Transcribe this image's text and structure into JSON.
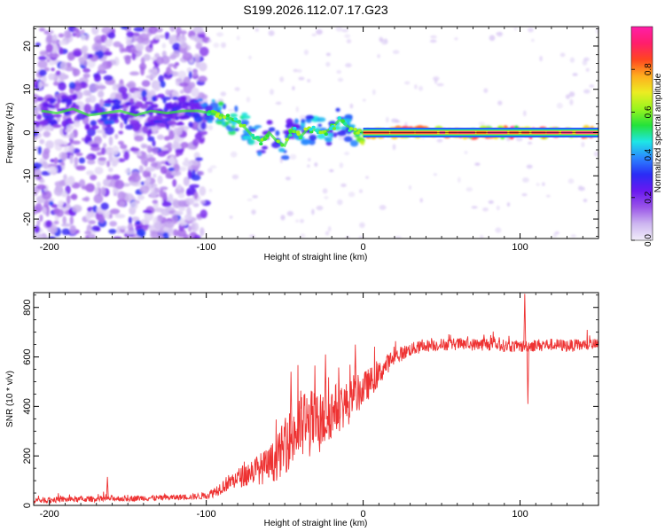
{
  "title": "S199.2026.112.07.17.G23",
  "chart_data": [
    {
      "type": "heatmap",
      "name": "spectrogram",
      "xlabel": "Height of straight line (km)",
      "ylabel": "Frequency (Hz)",
      "xlim": [
        -210,
        150
      ],
      "ylim": [
        -24.5,
        24.5
      ],
      "x_ticks": [
        -200,
        -100,
        0,
        100
      ],
      "x_tick_labels": [
        "-200",
        "-100",
        "0",
        "100"
      ],
      "y_ticks": [
        -20,
        -10,
        0,
        10,
        20
      ],
      "y_tick_labels": [
        "-20",
        "-10",
        "0",
        "10",
        "20"
      ],
      "colorbar": {
        "label": "Normalized spectral amplitude",
        "range": [
          0.0,
          1.0
        ],
        "ticks": [
          0.0,
          0.2,
          0.4,
          0.6,
          0.8
        ],
        "tick_labels": [
          "0.0",
          "0.2",
          "0.4",
          "0.6",
          "0.8"
        ],
        "colors": [
          "#f2eefa",
          "#cdb6f0",
          "#9a55e8",
          "#6a18f0",
          "#2a2cf5",
          "#2b86ff",
          "#1ee6e6",
          "#24e23a",
          "#9af51e",
          "#ecec22",
          "#ffad1e",
          "#ff4520",
          "#ff1e6c",
          "#ff1ea8"
        ]
      },
      "ridge": {
        "x": [
          -205,
          -195,
          -185,
          -175,
          -165,
          -155,
          -145,
          -135,
          -125,
          -115,
          -105,
          -98,
          -92,
          -86,
          -80,
          -75,
          -70,
          -65,
          -60,
          -55,
          -50,
          -45,
          -40,
          -35,
          -30,
          -25,
          -20,
          -15,
          -12,
          -8,
          -5,
          0,
          20,
          50,
          80,
          100,
          120,
          150
        ],
        "y": [
          5,
          4.5,
          5.5,
          4,
          4.5,
          5,
          4,
          5,
          4.5,
          5,
          5,
          4.5,
          4,
          3.5,
          2.5,
          1,
          -1,
          -2,
          0,
          -2,
          -3,
          1,
          -1,
          1,
          0.5,
          0,
          1,
          3,
          2,
          1,
          0.5,
          0,
          0,
          0,
          0,
          0,
          0,
          0
        ],
        "amplitude": [
          0.25,
          0.3,
          0.28,
          0.32,
          0.4,
          0.3,
          0.28,
          0.3,
          0.32,
          0.3,
          0.35,
          0.5,
          0.55,
          0.6,
          0.55,
          0.5,
          0.5,
          0.45,
          0.4,
          0.45,
          0.4,
          0.35,
          0.45,
          0.45,
          0.5,
          0.45,
          0.45,
          0.5,
          0.45,
          0.5,
          0.55,
          0.8,
          0.95,
          0.95,
          0.95,
          0.97,
          0.95,
          0.95
        ]
      }
    },
    {
      "type": "line",
      "name": "snr",
      "xlabel": "Height of straight line (km)",
      "ylabel": "SNR (10 * v/v)",
      "xlim": [
        -210,
        150
      ],
      "ylim": [
        0,
        860
      ],
      "x_ticks": [
        -200,
        -100,
        0,
        100
      ],
      "x_tick_labels": [
        "-200",
        "-100",
        "0",
        "100"
      ],
      "y_ticks": [
        0,
        200,
        400,
        600,
        800
      ],
      "y_tick_labels": [
        "0",
        "200",
        "400",
        "600",
        "800"
      ],
      "color": "#ee3333",
      "series": [
        {
          "name": "SNR",
          "x": [
            -210,
            -200,
            -190,
            -180,
            -170,
            -160,
            -150,
            -140,
            -130,
            -120,
            -110,
            -100,
            -95,
            -90,
            -85,
            -80,
            -75,
            -70,
            -65,
            -60,
            -55,
            -50,
            -45,
            -40,
            -35,
            -30,
            -25,
            -20,
            -15,
            -10,
            -5,
            0,
            5,
            10,
            15,
            20,
            25,
            30,
            40,
            50,
            60,
            70,
            80,
            90,
            100,
            110,
            120,
            130,
            140,
            150
          ],
          "y": [
            20,
            22,
            24,
            25,
            26,
            28,
            28,
            30,
            30,
            32,
            35,
            38,
            55,
            75,
            95,
            110,
            125,
            140,
            150,
            160,
            190,
            240,
            280,
            320,
            330,
            340,
            340,
            380,
            400,
            410,
            440,
            470,
            500,
            530,
            570,
            600,
            615,
            630,
            645,
            650,
            652,
            650,
            652,
            645,
            642,
            648,
            650,
            645,
            648,
            650
          ],
          "noise": [
            12,
            12,
            12,
            12,
            12,
            12,
            12,
            12,
            12,
            12,
            12,
            14,
            22,
            28,
            34,
            40,
            48,
            56,
            65,
            75,
            90,
            110,
            130,
            150,
            150,
            120,
            110,
            110,
            100,
            90,
            80,
            70,
            60,
            50,
            40,
            35,
            30,
            28,
            25,
            25,
            25,
            25,
            28,
            25,
            25,
            25,
            25,
            25,
            25,
            25
          ]
        }
      ],
      "spikes": [
        {
          "x": -163,
          "y": 115
        },
        {
          "x": -46,
          "y": 540
        },
        {
          "x": -24,
          "y": 610
        },
        {
          "x": -5,
          "y": 650
        },
        {
          "x": 77,
          "y": 690
        },
        {
          "x": 103,
          "y": 855
        },
        {
          "x": 105,
          "y": 410
        }
      ]
    }
  ]
}
